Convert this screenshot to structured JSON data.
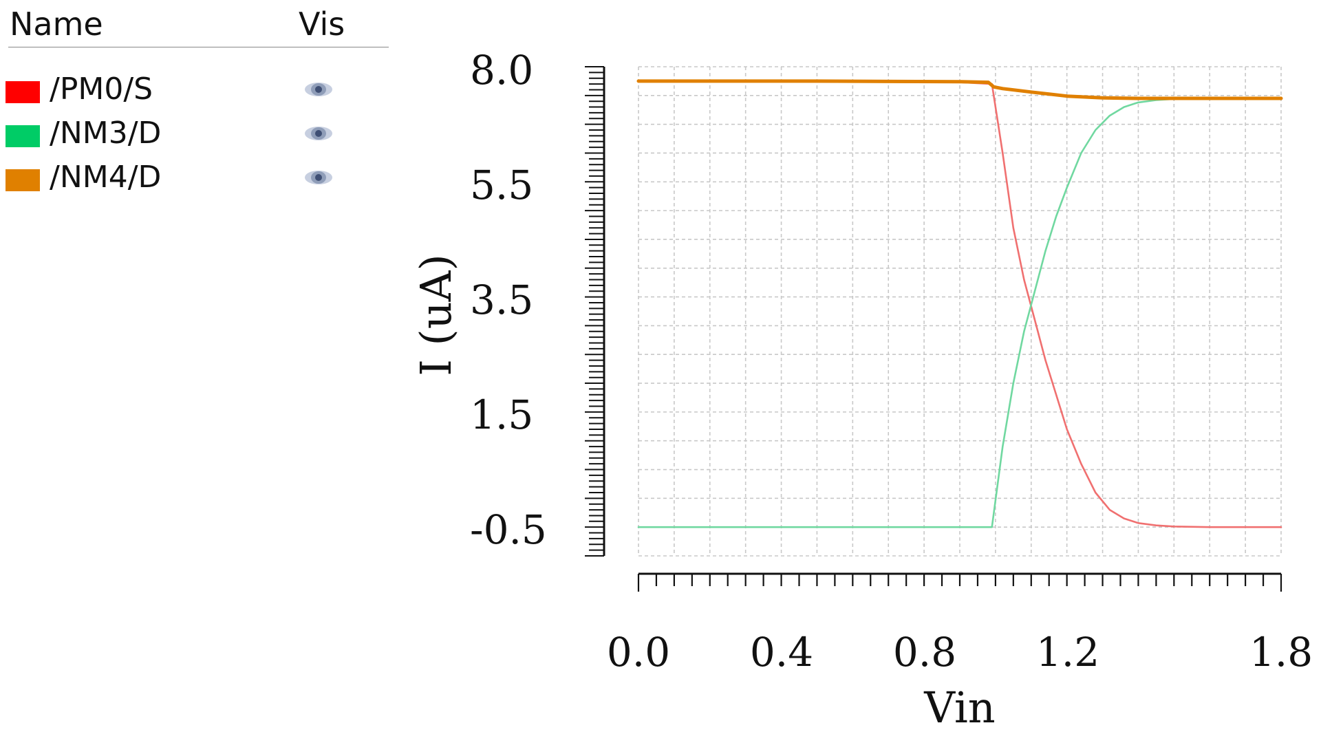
{
  "legend": {
    "header_name": "Name",
    "header_vis": "Vis",
    "items": [
      {
        "name": "/PM0/S",
        "color": "#ff0000",
        "icon": "eye-icon"
      },
      {
        "name": "/NM3/D",
        "color": "#00cc66",
        "icon": "eye-icon"
      },
      {
        "name": "/NM4/D",
        "color": "#e08000",
        "icon": "eye-icon"
      }
    ]
  },
  "chart_data": {
    "type": "line",
    "xlabel": "Vin",
    "ylabel": "I (uA)",
    "xlim": [
      0.0,
      1.8
    ],
    "ylim": [
      -0.5,
      8.0
    ],
    "x_ticks": [
      "0.0",
      "0.4",
      "0.8",
      "1.2",
      "1.8"
    ],
    "y_ticks": [
      "8.0",
      "5.5",
      "3.5",
      "1.5",
      "-0.5"
    ],
    "grid": true,
    "series": [
      {
        "name": "/PM0/S",
        "color": "#f07070",
        "x": [
          0.0,
          0.9,
          0.99,
          1.02,
          1.05,
          1.08,
          1.11,
          1.14,
          1.17,
          1.2,
          1.24,
          1.28,
          1.32,
          1.36,
          1.4,
          1.45,
          1.5,
          1.6,
          1.8
        ],
        "y": [
          7.75,
          7.73,
          7.7,
          6.5,
          5.2,
          4.3,
          3.6,
          2.9,
          2.3,
          1.7,
          1.1,
          0.6,
          0.3,
          0.15,
          0.07,
          0.03,
          0.01,
          0.0,
          0.0
        ]
      },
      {
        "name": "/NM3/D",
        "color": "#70d8a0",
        "x": [
          0.0,
          0.9,
          0.99,
          1.02,
          1.05,
          1.08,
          1.11,
          1.14,
          1.17,
          1.2,
          1.24,
          1.28,
          1.32,
          1.36,
          1.4,
          1.45,
          1.5,
          1.6,
          1.8
        ],
        "y": [
          0.0,
          0.0,
          0.0,
          1.4,
          2.5,
          3.4,
          4.1,
          4.8,
          5.4,
          5.9,
          6.5,
          6.9,
          7.15,
          7.3,
          7.38,
          7.42,
          7.44,
          7.45,
          7.45
        ]
      },
      {
        "name": "/NM4/D",
        "color": "#e08000",
        "x": [
          0.0,
          0.5,
          0.9,
          0.98,
          0.995,
          1.02,
          1.1,
          1.2,
          1.3,
          1.4,
          1.5,
          1.6,
          1.8
        ],
        "y": [
          7.75,
          7.75,
          7.74,
          7.73,
          7.65,
          7.62,
          7.56,
          7.49,
          7.46,
          7.45,
          7.45,
          7.45,
          7.45
        ]
      }
    ]
  }
}
